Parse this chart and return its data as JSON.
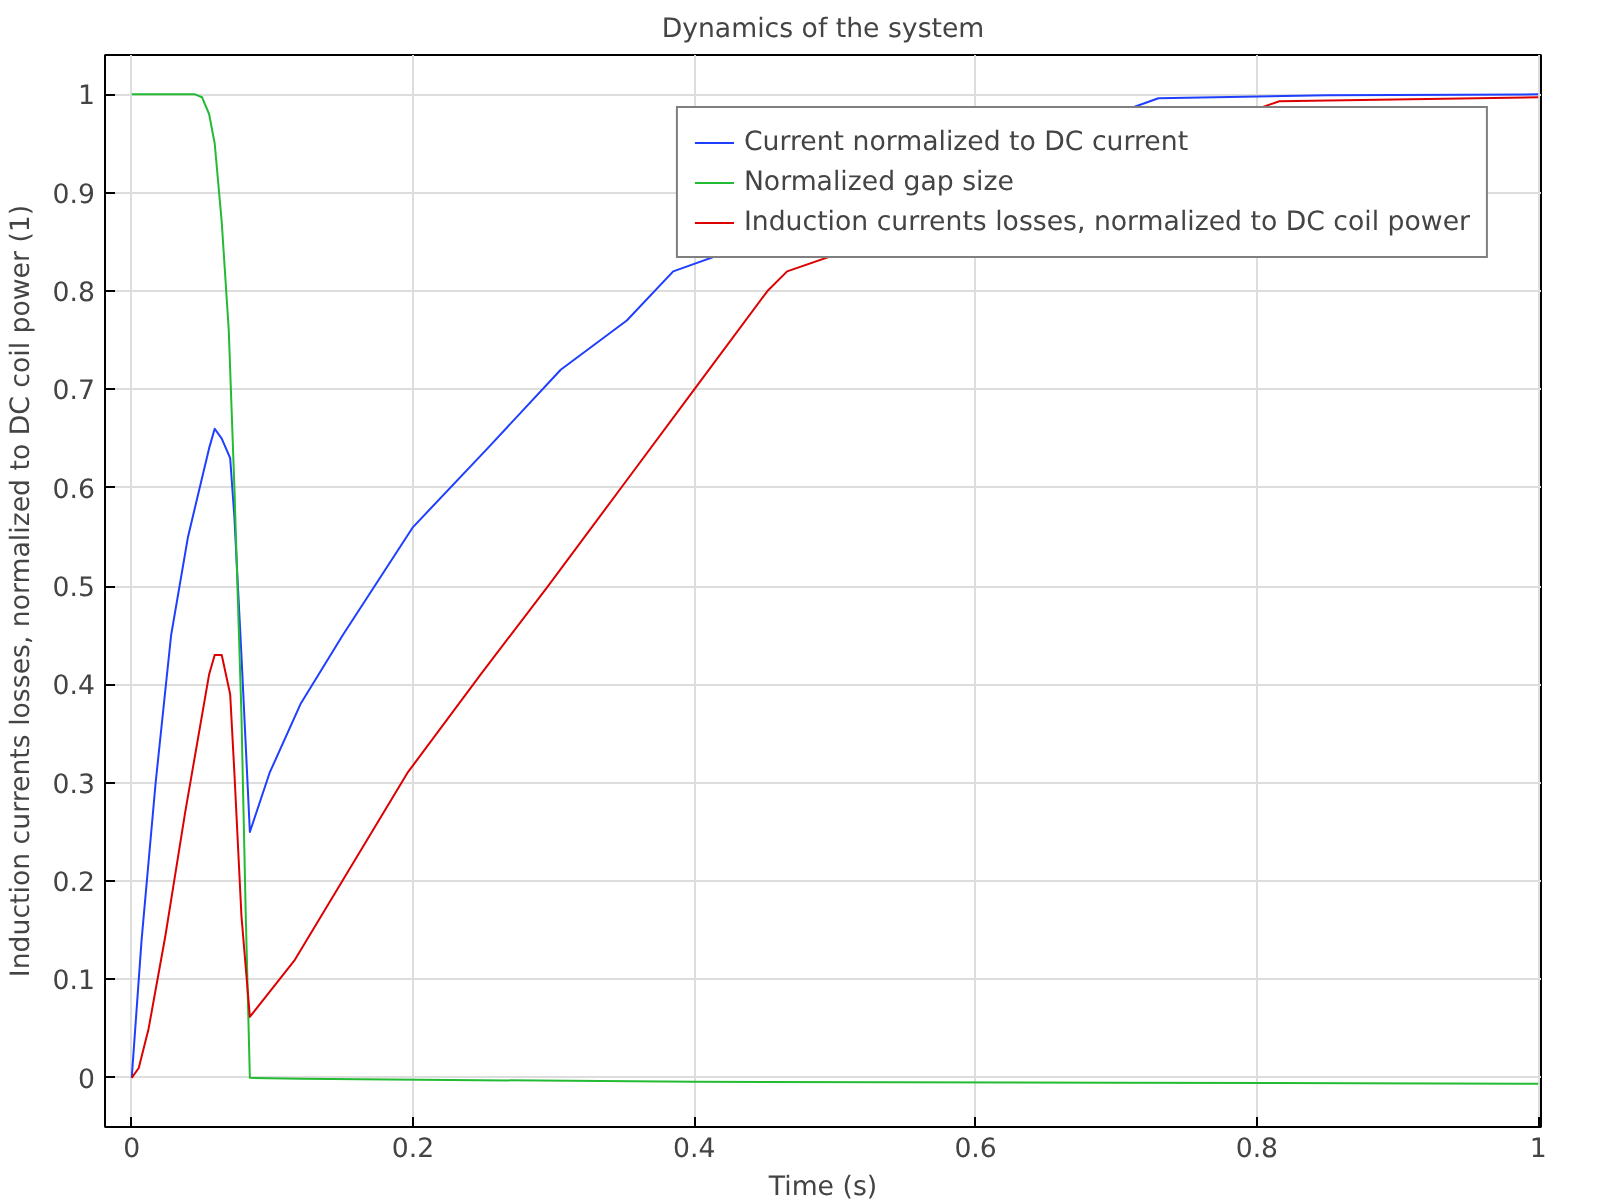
{
  "chart_data": {
    "type": "line",
    "title": "Dynamics of the system",
    "xlabel": "Time (s)",
    "ylabel": "Induction currents losses, normalized to DC coil power (1)",
    "xlim": [
      -0.019,
      1.002
    ],
    "ylim": [
      -0.05,
      1.04
    ],
    "xticks": [
      0,
      0.2,
      0.4,
      0.6,
      0.8,
      1
    ],
    "yticks": [
      0,
      0.1,
      0.2,
      0.3,
      0.4,
      0.5,
      0.6,
      0.7,
      0.8,
      0.9,
      1
    ],
    "grid": true,
    "legend": "top right",
    "marker": "none",
    "line_style": "solid",
    "series": [
      {
        "name": "Current normalized to DC current",
        "color": "#1f3fff",
        "x": [
          0,
          0.007,
          0.017,
          0.028,
          0.04,
          0.055,
          0.059,
          0.064,
          0.07,
          0.073,
          0.078,
          0.084,
          0.098,
          0.12,
          0.15,
          0.2,
          0.253,
          0.305,
          0.352,
          0.385,
          0.73,
          0.85,
          1
        ],
        "values": [
          0,
          0.14,
          0.3,
          0.45,
          0.55,
          0.64,
          0.66,
          0.65,
          0.63,
          0.57,
          0.43,
          0.25,
          0.31,
          0.38,
          0.45,
          0.56,
          0.64,
          0.72,
          0.77,
          0.82,
          0.996,
          0.999,
          1
        ]
      },
      {
        "name": "Normalized gap size",
        "color": "#22bb33",
        "x": [
          0,
          0.045,
          0.05,
          0.055,
          0.059,
          0.064,
          0.069,
          0.073,
          0.078,
          0.081,
          0.084,
          0.12,
          0.4,
          0.7,
          1
        ],
        "values": [
          1,
          1,
          0.997,
          0.98,
          0.95,
          0.87,
          0.76,
          0.6,
          0.37,
          0.17,
          0,
          -0.001,
          -0.004,
          -0.005,
          -0.006
        ]
      },
      {
        "name": "Induction currents losses, normalized to DC coil power",
        "color": "#dd0000",
        "x": [
          0,
          0.005,
          0.012,
          0.024,
          0.038,
          0.055,
          0.059,
          0.064,
          0.07,
          0.073,
          0.078,
          0.084,
          0.116,
          0.196,
          0.248,
          0.296,
          0.348,
          0.4,
          0.452,
          0.466,
          0.816,
          1
        ],
        "values": [
          0,
          0.01,
          0.05,
          0.145,
          0.27,
          0.41,
          0.43,
          0.43,
          0.39,
          0.31,
          0.165,
          0.062,
          0.12,
          0.31,
          0.41,
          0.5,
          0.6,
          0.7,
          0.8,
          0.82,
          0.993,
          0.997
        ]
      }
    ]
  }
}
